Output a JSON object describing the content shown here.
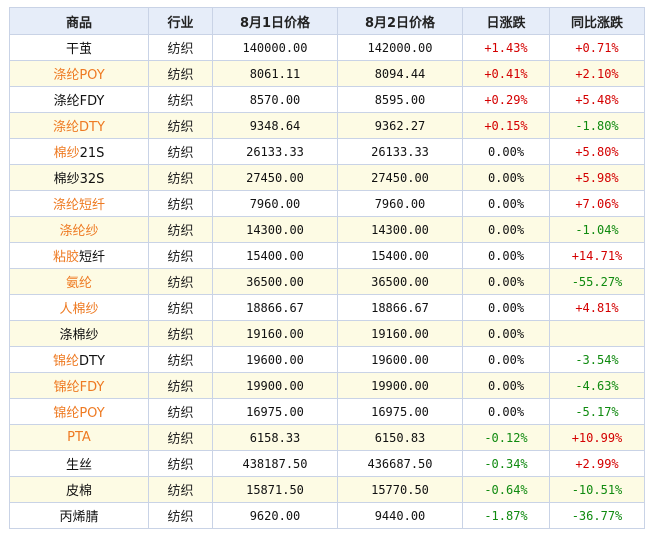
{
  "headers": [
    "商品",
    "行业",
    "8月1日价格",
    "8月2日价格",
    "日涨跌",
    "同比涨跌"
  ],
  "colors": {
    "link": "#ee7a22",
    "up": "#d40000",
    "down": "#0f8a0f",
    "header_bg": "#e6edf9",
    "alt_row_bg": "#fdfbe4"
  },
  "rows": [
    {
      "name": [
        {
          "t": "干茧",
          "c": ""
        }
      ],
      "industry": "纺织",
      "p1": "140000.00",
      "p2": "142000.00",
      "day": "+1.43%",
      "yoy": "+0.71%"
    },
    {
      "name": [
        {
          "t": "涤纶POY",
          "c": "link"
        }
      ],
      "industry": "纺织",
      "p1": "8061.11",
      "p2": "8094.44",
      "day": "+0.41%",
      "yoy": "+2.10%"
    },
    {
      "name": [
        {
          "t": "涤纶FDY",
          "c": ""
        }
      ],
      "industry": "纺织",
      "p1": "8570.00",
      "p2": "8595.00",
      "day": "+0.29%",
      "yoy": "+5.48%"
    },
    {
      "name": [
        {
          "t": "涤纶DTY",
          "c": "link"
        }
      ],
      "industry": "纺织",
      "p1": "9348.64",
      "p2": "9362.27",
      "day": "+0.15%",
      "yoy": "-1.80%"
    },
    {
      "name": [
        {
          "t": "棉纱",
          "c": "link"
        },
        {
          "t": "21S",
          "c": ""
        }
      ],
      "industry": "纺织",
      "p1": "26133.33",
      "p2": "26133.33",
      "day": "0.00%",
      "yoy": "+5.80%"
    },
    {
      "name": [
        {
          "t": "棉纱32S",
          "c": ""
        }
      ],
      "industry": "纺织",
      "p1": "27450.00",
      "p2": "27450.00",
      "day": "0.00%",
      "yoy": "+5.98%"
    },
    {
      "name": [
        {
          "t": "涤纶短纤",
          "c": "link"
        }
      ],
      "industry": "纺织",
      "p1": "7960.00",
      "p2": "7960.00",
      "day": "0.00%",
      "yoy": "+7.06%"
    },
    {
      "name": [
        {
          "t": "涤纶纱",
          "c": "link"
        }
      ],
      "industry": "纺织",
      "p1": "14300.00",
      "p2": "14300.00",
      "day": "0.00%",
      "yoy": "-1.04%"
    },
    {
      "name": [
        {
          "t": "粘胶",
          "c": "link"
        },
        {
          "t": "短纤",
          "c": ""
        }
      ],
      "industry": "纺织",
      "p1": "15400.00",
      "p2": "15400.00",
      "day": "0.00%",
      "yoy": "+14.71%"
    },
    {
      "name": [
        {
          "t": "氨纶",
          "c": "link"
        }
      ],
      "industry": "纺织",
      "p1": "36500.00",
      "p2": "36500.00",
      "day": "0.00%",
      "yoy": "-55.27%"
    },
    {
      "name": [
        {
          "t": "人棉纱",
          "c": "link"
        }
      ],
      "industry": "纺织",
      "p1": "18866.67",
      "p2": "18866.67",
      "day": "0.00%",
      "yoy": "+4.81%"
    },
    {
      "name": [
        {
          "t": "涤棉纱",
          "c": ""
        }
      ],
      "industry": "纺织",
      "p1": "19160.00",
      "p2": "19160.00",
      "day": "0.00%",
      "yoy": ""
    },
    {
      "name": [
        {
          "t": "锦纶",
          "c": "link"
        },
        {
          "t": "DTY",
          "c": ""
        }
      ],
      "industry": "纺织",
      "p1": "19600.00",
      "p2": "19600.00",
      "day": "0.00%",
      "yoy": "-3.54%"
    },
    {
      "name": [
        {
          "t": "锦纶FDY",
          "c": "link"
        }
      ],
      "industry": "纺织",
      "p1": "19900.00",
      "p2": "19900.00",
      "day": "0.00%",
      "yoy": "-4.63%"
    },
    {
      "name": [
        {
          "t": "锦纶POY",
          "c": "link"
        }
      ],
      "industry": "纺织",
      "p1": "16975.00",
      "p2": "16975.00",
      "day": "0.00%",
      "yoy": "-5.17%"
    },
    {
      "name": [
        {
          "t": "PTA",
          "c": "link"
        }
      ],
      "industry": "纺织",
      "p1": "6158.33",
      "p2": "6150.83",
      "day": "-0.12%",
      "yoy": "+10.99%"
    },
    {
      "name": [
        {
          "t": "生丝",
          "c": ""
        }
      ],
      "industry": "纺织",
      "p1": "438187.50",
      "p2": "436687.50",
      "day": "-0.34%",
      "yoy": "+2.99%"
    },
    {
      "name": [
        {
          "t": "皮棉",
          "c": ""
        }
      ],
      "industry": "纺织",
      "p1": "15871.50",
      "p2": "15770.50",
      "day": "-0.64%",
      "yoy": "-10.51%"
    },
    {
      "name": [
        {
          "t": "丙烯腈",
          "c": ""
        }
      ],
      "industry": "纺织",
      "p1": "9620.00",
      "p2": "9440.00",
      "day": "-1.87%",
      "yoy": "-36.77%"
    }
  ]
}
